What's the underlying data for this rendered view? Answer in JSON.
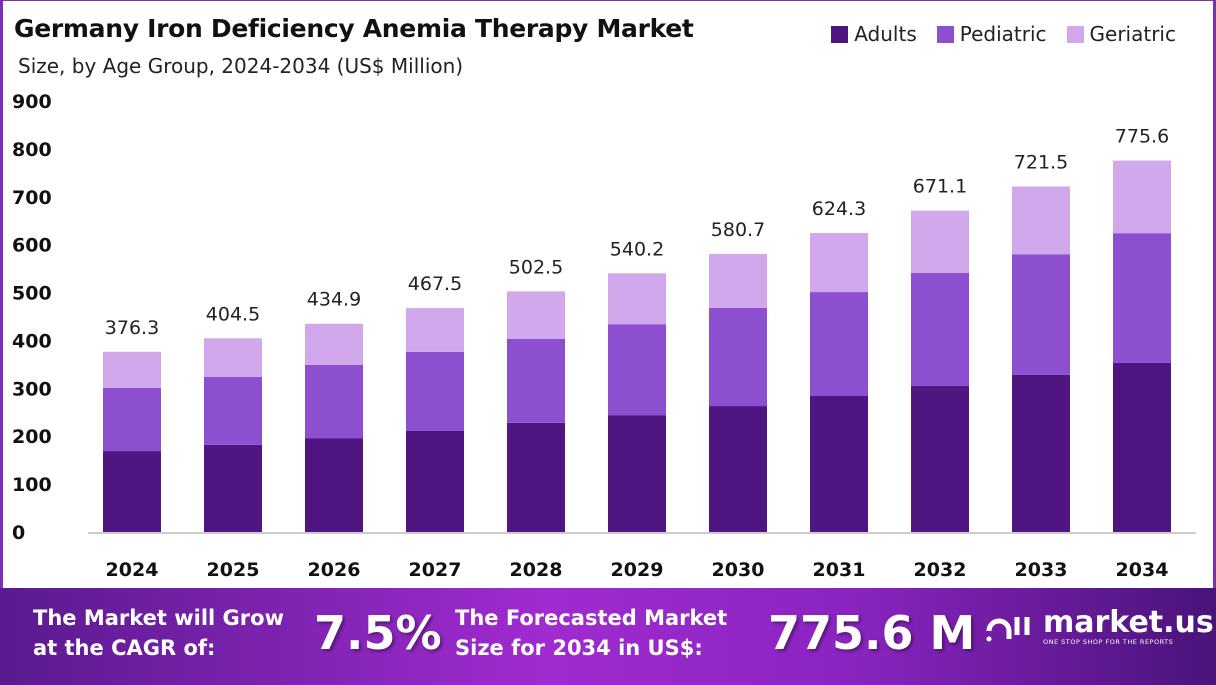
{
  "chart_data": {
    "type": "bar",
    "stacked": true,
    "title": "Germany Iron Deficiency Anemia Therapy Market",
    "subtitle": "Size, by Age Group, 2024-2034 (US$ Million)",
    "categories": [
      "2024",
      "2025",
      "2026",
      "2027",
      "2028",
      "2029",
      "2030",
      "2031",
      "2032",
      "2033",
      "2034"
    ],
    "series": [
      {
        "name": "Adults",
        "color": "#4f1681",
        "values": [
          169,
          182,
          196,
          211,
          228,
          244,
          263,
          284,
          305,
          328,
          353
        ]
      },
      {
        "name": "Pediatric",
        "color": "#8b4fcf",
        "values": [
          132,
          142,
          153,
          165,
          175,
          190,
          205,
          217,
          236,
          252,
          271
        ]
      },
      {
        "name": "Geriatric",
        "color": "#d1a8eb",
        "values": [
          75.3,
          80.5,
          85.9,
          91.5,
          99.5,
          106.2,
          112.7,
          123.3,
          130.1,
          141.5,
          151.6
        ]
      }
    ],
    "totals": [
      "376.3",
      "404.5",
      "434.9",
      "467.5",
      "502.5",
      "540.2",
      "580.7",
      "624.3",
      "671.1",
      "721.5",
      "775.6"
    ],
    "yticks": [
      "0",
      "100",
      "200",
      "300",
      "400",
      "500",
      "600",
      "700",
      "800",
      "900"
    ],
    "ylim": [
      0,
      900
    ],
    "grid": false,
    "legend": "top-right"
  },
  "banner": {
    "cagr_label_1": "The Market will Grow",
    "cagr_label_2": "at the CAGR of:",
    "cagr_value": "7.5%",
    "forecast_label_1": "The Forecasted Market",
    "forecast_label_2": "Size for 2034 in US$:",
    "forecast_value": "775.6 M",
    "logo_text": "market.us",
    "logo_tagline": "ONE STOP SHOP FOR THE REPORTS"
  }
}
